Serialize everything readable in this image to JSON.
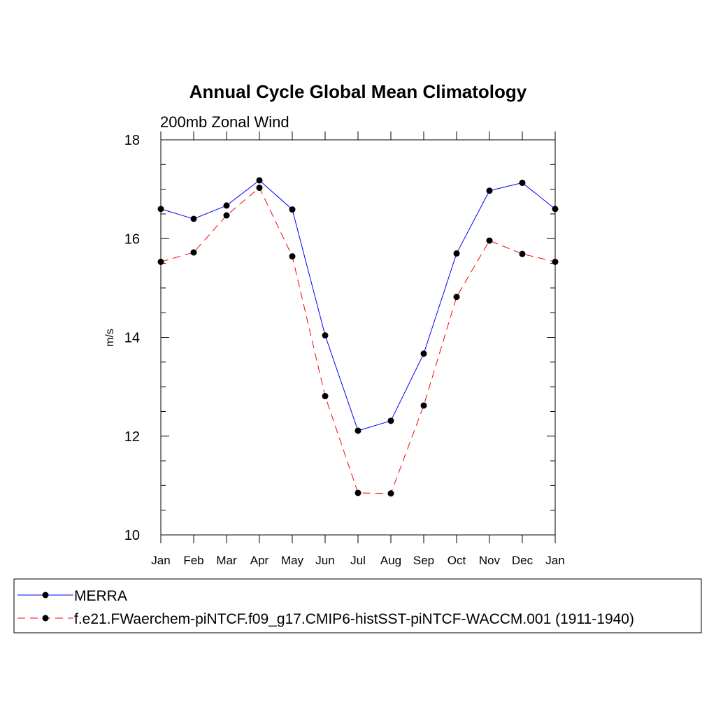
{
  "chart_data": {
    "type": "line",
    "title": "Annual Cycle Global Mean Climatology",
    "subtitle": "200mb Zonal Wind",
    "xlabel": "",
    "ylabel": "m/s",
    "categories": [
      "Jan",
      "Feb",
      "Mar",
      "Apr",
      "May",
      "Jun",
      "Jul",
      "Aug",
      "Sep",
      "Oct",
      "Nov",
      "Dec",
      "Jan"
    ],
    "ylim": [
      10,
      18
    ],
    "yticks": [
      10,
      12,
      14,
      16,
      18
    ],
    "series": [
      {
        "name": "MERRA",
        "color": "#0000ff",
        "dash": "solid",
        "values": [
          16.6,
          16.4,
          16.67,
          17.18,
          16.59,
          14.04,
          12.11,
          12.31,
          13.67,
          15.7,
          16.97,
          17.13,
          16.6
        ]
      },
      {
        "name": "f.e21.FWaerchem-piNTCF.f09_g17.CMIP6-histSST-piNTCF-WACCM.001 (1911-1940)",
        "color": "#ff0000",
        "dash": "dashed",
        "values": [
          15.53,
          15.72,
          16.47,
          17.03,
          15.64,
          12.81,
          10.85,
          10.84,
          12.62,
          14.82,
          15.96,
          15.69,
          15.53
        ]
      }
    ],
    "legend_position": "bottom"
  }
}
